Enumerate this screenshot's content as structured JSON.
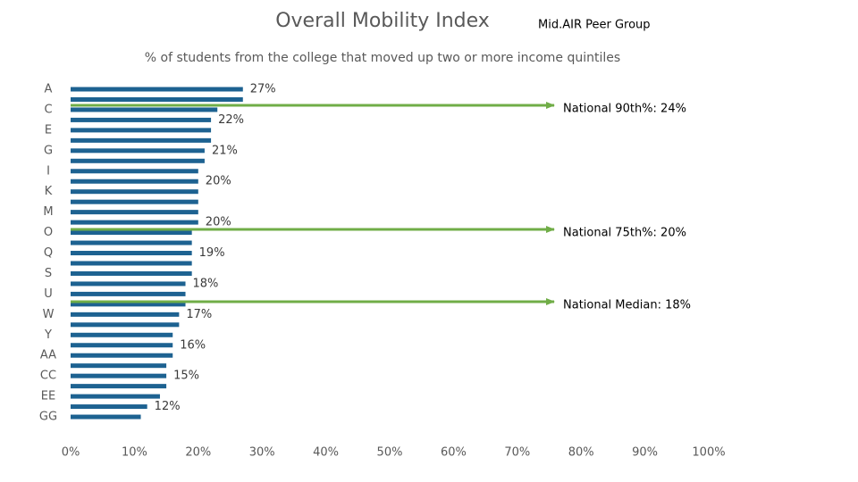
{
  "chart_data": {
    "type": "barh",
    "title": "Overall Mobility Index",
    "group_label": "Mid.AIR Peer Group",
    "subtitle": "% of students from the college that moved up two or more income quintiles",
    "categories": [
      "A",
      null,
      "C",
      null,
      "E",
      null,
      "G",
      null,
      "I",
      null,
      "K",
      null,
      "M",
      null,
      "O",
      null,
      "Q",
      null,
      "S",
      null,
      "U",
      null,
      "W",
      null,
      "Y",
      null,
      "AA",
      null,
      "CC",
      null,
      "EE",
      null,
      "GG"
    ],
    "values": [
      27,
      27,
      23,
      22,
      22,
      22,
      21,
      21,
      20,
      20,
      20,
      20,
      20,
      20,
      19,
      19,
      19,
      19,
      19,
      18,
      18,
      18,
      17,
      17,
      16,
      16,
      16,
      15,
      15,
      15,
      14,
      12,
      11
    ],
    "value_labels": [
      "27%",
      null,
      null,
      "22%",
      null,
      null,
      "21%",
      null,
      null,
      "20%",
      null,
      null,
      null,
      "20%",
      null,
      null,
      "19%",
      null,
      null,
      "18%",
      null,
      null,
      "17%",
      null,
      null,
      "16%",
      null,
      null,
      "15%",
      null,
      null,
      "12%",
      null
    ],
    "color": "#1d6291",
    "xlim": [
      0,
      100
    ],
    "xticks": [
      {
        "value": 0,
        "label": "0%"
      },
      {
        "value": 10,
        "label": "10%"
      },
      {
        "value": 20,
        "label": "20%"
      },
      {
        "value": 30,
        "label": "30%"
      },
      {
        "value": 40,
        "label": "40%"
      },
      {
        "value": 50,
        "label": "50%"
      },
      {
        "value": 60,
        "label": "60%"
      },
      {
        "value": 70,
        "label": "70%"
      },
      {
        "value": 80,
        "label": "80%"
      },
      {
        "value": 90,
        "label": "90%"
      },
      {
        "value": 100,
        "label": "100%"
      }
    ],
    "grid": false,
    "annotations": [
      {
        "text": "National 90th%:  24%",
        "color": "#70ad47"
      },
      {
        "text": "National 75th%:  20%",
        "color": "#70ad47"
      },
      {
        "text": "National Median:  18%",
        "color": "#70ad47"
      }
    ]
  }
}
